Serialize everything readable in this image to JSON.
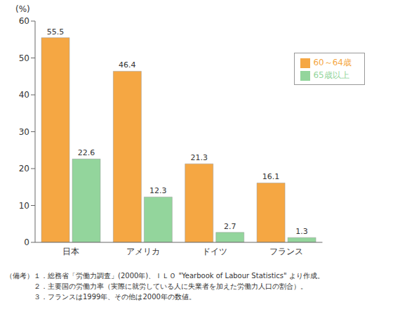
{
  "chart_data": {
    "type": "bar",
    "y_label": "(%)",
    "categories": [
      "日本",
      "アメリカ",
      "ドイツ",
      "フランス"
    ],
    "series": [
      {
        "name": "60～64歳",
        "color": "#f5a743",
        "values": [
          55.5,
          46.4,
          21.3,
          16.1
        ]
      },
      {
        "name": "65歳以上",
        "color": "#93d59c",
        "values": [
          22.6,
          12.3,
          2.7,
          1.3
        ]
      }
    ],
    "ylim": [
      0,
      60
    ],
    "yticks": [
      0,
      10,
      20,
      30,
      40,
      50,
      60
    ],
    "grid": false,
    "legend": "upper right",
    "data_labels": true,
    "notes_label": "（備考）",
    "notes": [
      "１．総務省「労働力調査」(2000年)、ＩＬＯ \"Yearbook of Labour Statistics\" より作成。",
      "２．主要国の労働力率（実際に就労している人に失業者を加えた労働力人口の割合）。",
      "３．フランスは1999年、その他は2000年の数値。"
    ]
  }
}
